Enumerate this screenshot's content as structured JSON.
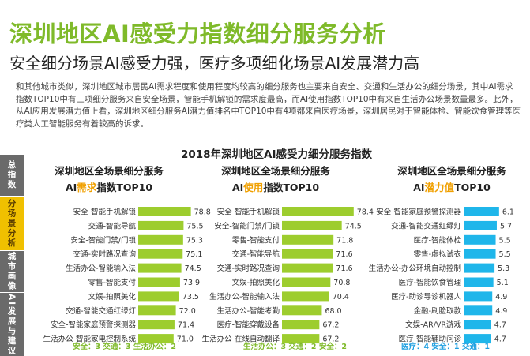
{
  "title": "深圳地区AI感受力指数细分服务分析",
  "subtitle": "安全细分场景AI感受力强，医疗多项细化场景AI发展潜力高",
  "description": "和其他城市类似，深圳地区城市居民AI需求程度和使用程度均较高的细分服务也主要来自安全、交通和生活办公的细分场景，其中AI需求指数TOP10中有三项细分服务来自安全场景，智能手机解锁的需求度最高，而AI使用指数TOP10中有来自生活办公场景数量最多。此外，从AI应用发展潜力值上看，深圳地区细分服务AI潜力值排名中TOP10中有4项都来自医疗场景，深圳居民对于智能体检、智能饮食管理等医疗类人工智能服务有着较高的诉求。",
  "sidebar": {
    "items": [
      {
        "label": "总指数",
        "active": false
      },
      {
        "label": "分场景分析",
        "active": true
      },
      {
        "label": "城市画像",
        "active": false
      },
      {
        "label": "AI发展与建议",
        "active": false
      }
    ]
  },
  "colors": {
    "title_green": "#7fba2a",
    "bar_green": "#9dcd2e",
    "bar_blue": "#1fb6ea",
    "highlight_orange": "#f0a000",
    "summary_green": "#7fba2a",
    "summary_blue": "#1f9fe0",
    "sidebar_active": "#f0c000",
    "sidebar_inactive": "#6a6a6a"
  },
  "chart_data": [
    {
      "type": "bar",
      "super_title": "2018年深圳地区AI感受力细分服务指数",
      "title_line1": "深圳地区全场景细分服务",
      "title_prefix": "AI",
      "title_highlight": "需求",
      "title_suffix": "指数TOP10",
      "categories": [
        "安全-智能手机解锁",
        "交通-智能导航",
        "安全-智能门禁/门锁",
        "交通-实时路况查询",
        "生活办公-智能输入法",
        "零售-智能支付",
        "文娱-拍照美化",
        "交通-智能交通红绿灯",
        "安全-智能家庭预警探测器",
        "生活办公-智能家电控制系统"
      ],
      "values": [
        78.8,
        75.5,
        75.3,
        75.1,
        74.5,
        73.9,
        73.5,
        72.0,
        71.4,
        71.0
      ],
      "value_labels": [
        "78.8",
        "75.5",
        "75.3",
        "75.1",
        "74.5",
        "73.9",
        "73.5",
        "72.0",
        "71.4",
        "71.0"
      ],
      "xlim": [
        55,
        80
      ],
      "color": "#9dcd2e",
      "summary": "安全：3  交通：3  生活办公：2"
    },
    {
      "type": "bar",
      "title_line1": "深圳地区全场景细分服务",
      "title_prefix": "AI",
      "title_highlight": "使用",
      "title_suffix": "指数TOP10",
      "categories": [
        "安全-智能手机解锁",
        "安全-智能门禁/门锁",
        "零售-智能支付",
        "交通-智能导航",
        "交通-实时路况查询",
        "文娱-拍照美化",
        "生活办公-智能输入法",
        "生活办公-智能考勤",
        "医疗-智能穿戴设备",
        "生活办公-在线自动翻译"
      ],
      "values": [
        78.4,
        74.5,
        71.8,
        71.6,
        71.6,
        70.8,
        70.4,
        68.0,
        67.2,
        67.2
      ],
      "value_labels": [
        "78.4",
        "74.5",
        "71.8",
        "71.6",
        "71.6",
        "70.8",
        "70.4",
        "68.0",
        "67.2",
        "67.2"
      ],
      "xlim": [
        55,
        80
      ],
      "color": "#9dcd2e",
      "summary": "生活办公：3  交通：2  安全：2"
    },
    {
      "type": "bar",
      "title_line1": "深圳地区全场景细分服务",
      "title_prefix": "AI",
      "title_highlight": "潜力值",
      "title_suffix": "TOP10",
      "categories": [
        "安全-智能家庭预警探测器",
        "交通-智能交通红绿灯",
        "医疗-智能体检",
        "零售-虚拟试衣",
        "生活办公-办公环境自动控制",
        "医疗-智能饮食管理",
        "医疗-助诊导诊机器人",
        "金融-刷脸取款",
        "文娱-AR/VR游戏",
        "医疗-智能辅助问诊"
      ],
      "values": [
        6.1,
        5.7,
        5.5,
        5.5,
        5.3,
        5.1,
        4.9,
        4.9,
        4.7,
        4.7
      ],
      "value_labels": [
        "6.1",
        "5.7",
        "5.5",
        "5.5",
        "5.3",
        "5.1",
        "4.9",
        "4.9",
        "4.7",
        "4.7"
      ],
      "xlim": [
        0,
        6.4
      ],
      "color": "#1fb6ea",
      "summary": "医疗：4  安全：1  交通：1"
    }
  ]
}
